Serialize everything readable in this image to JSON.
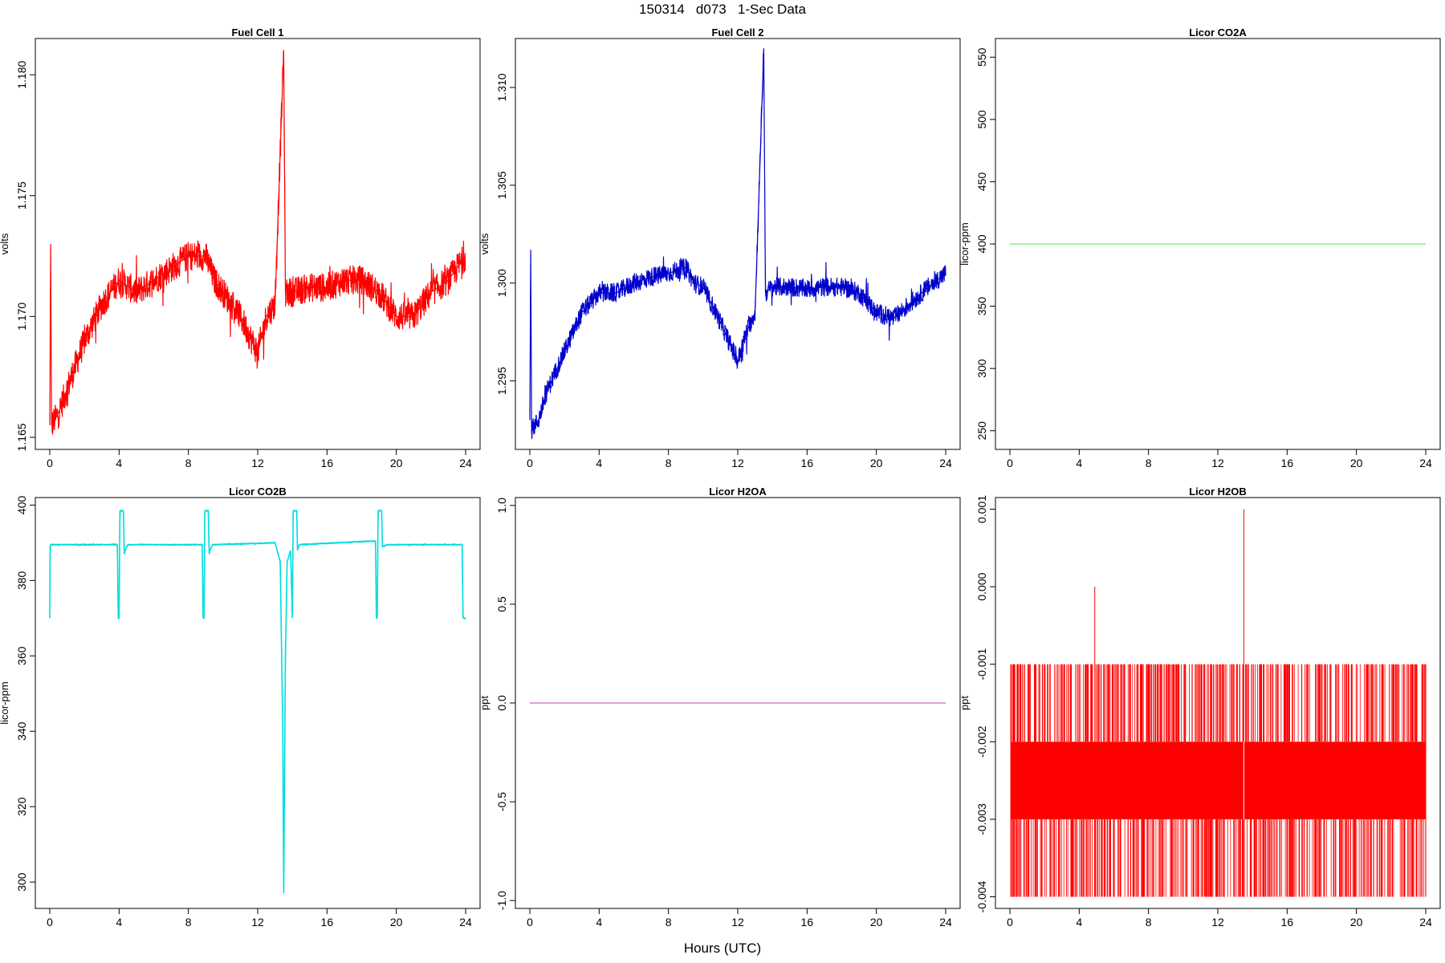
{
  "figure": {
    "title": "150314   d073   1-Sec Data",
    "xlabel": "Hours (UTC)"
  },
  "chart_data": [
    {
      "type": "line",
      "title": "Fuel Cell 1",
      "ylabel": "volts",
      "color": "#ff0000",
      "xlim": [
        0,
        24
      ],
      "ylim": [
        1.1645,
        1.1815
      ],
      "x_ticks": [
        0,
        4,
        8,
        12,
        16,
        20,
        24
      ],
      "y_ticks": [
        "1.165",
        "1.170",
        "1.175",
        "1.180"
      ],
      "y_tick_values": [
        1.165,
        1.17,
        1.175,
        1.18
      ],
      "noise": 0.001,
      "series": [
        {
          "x": [
            0,
            0.05,
            0.1,
            0.5,
            1,
            2,
            3,
            4,
            5,
            6,
            7,
            8,
            9,
            9.5,
            10,
            11,
            12,
            12.5,
            13,
            13.5,
            13.6,
            14,
            15,
            16,
            17,
            18,
            19,
            20,
            21,
            22,
            23,
            24
          ],
          "y": [
            1.1655,
            1.173,
            1.1655,
            1.166,
            1.167,
            1.169,
            1.1705,
            1.1715,
            1.171,
            1.1715,
            1.172,
            1.1725,
            1.1725,
            1.1715,
            1.171,
            1.17,
            1.1685,
            1.17,
            1.1705,
            1.181,
            1.171,
            1.171,
            1.1712,
            1.1712,
            1.1715,
            1.1715,
            1.171,
            1.17,
            1.17,
            1.171,
            1.1715,
            1.1725
          ]
        }
      ]
    },
    {
      "type": "line",
      "title": "Fuel Cell 2",
      "ylabel": "volts",
      "color": "#0000cc",
      "xlim": [
        0,
        24
      ],
      "ylim": [
        1.2915,
        1.3125
      ],
      "x_ticks": [
        0,
        4,
        8,
        12,
        16,
        20,
        24
      ],
      "y_ticks": [
        "1.295",
        "1.300",
        "1.305",
        "1.310"
      ],
      "y_tick_values": [
        1.295,
        1.3,
        1.305,
        1.31
      ],
      "noise": 0.0008,
      "series": [
        {
          "x": [
            0,
            0.05,
            0.1,
            0.5,
            1,
            2,
            3,
            4,
            5,
            6,
            7,
            8,
            9,
            9.5,
            10,
            11,
            12,
            12.5,
            13,
            13.5,
            13.6,
            14,
            15,
            16,
            17,
            18,
            19,
            20,
            21,
            22,
            23,
            24
          ],
          "y": [
            1.293,
            1.3017,
            1.2925,
            1.293,
            1.2945,
            1.2965,
            1.2985,
            1.2995,
            1.2995,
            1.3,
            1.3003,
            1.3005,
            1.3008,
            1.3,
            1.2998,
            1.298,
            1.296,
            1.2975,
            1.2985,
            1.312,
            1.2995,
            1.2998,
            1.2998,
            1.2997,
            1.2998,
            1.2998,
            1.2995,
            1.2985,
            1.2982,
            1.299,
            1.2998,
            1.3005
          ]
        }
      ]
    },
    {
      "type": "line",
      "title": "Licor CO2A",
      "ylabel": "licor-ppm",
      "color": "#66ee66",
      "xlim": [
        0,
        24
      ],
      "ylim": [
        235,
        565
      ],
      "x_ticks": [
        0,
        4,
        8,
        12,
        16,
        20,
        24
      ],
      "y_ticks": [
        "250",
        "300",
        "350",
        "400",
        "450",
        "500",
        "550"
      ],
      "y_tick_values": [
        250,
        300,
        350,
        400,
        450,
        500,
        550
      ],
      "noise": 0,
      "series": [
        {
          "x": [
            0,
            24
          ],
          "y": [
            400,
            400
          ]
        }
      ]
    },
    {
      "type": "line",
      "title": "Licor CO2B",
      "ylabel": "licor-ppm",
      "color": "#00dddd",
      "xlim": [
        0,
        24
      ],
      "ylim": [
        293,
        402
      ],
      "x_ticks": [
        0,
        4,
        8,
        12,
        16,
        20,
        24
      ],
      "y_ticks": [
        "300",
        "320",
        "340",
        "360",
        "380",
        "400"
      ],
      "y_tick_values": [
        300,
        320,
        340,
        360,
        380,
        400
      ],
      "noise": 0.2,
      "series": [
        {
          "x": [
            0,
            0.02,
            0.05,
            0.3,
            3.9,
            3.95,
            4.0,
            4.05,
            4.25,
            4.3,
            4.35,
            4.5,
            8.8,
            8.85,
            8.9,
            8.95,
            9.15,
            9.2,
            9.25,
            9.4,
            13.0,
            13.3,
            13.45,
            13.5,
            13.6,
            13.7,
            13.9,
            14.0,
            14.05,
            14.25,
            14.3,
            14.4,
            18.8,
            18.85,
            18.9,
            18.95,
            19.15,
            19.2,
            19.5,
            23.8,
            23.85,
            24
          ],
          "y": [
            370,
            389,
            389.5,
            389.5,
            389.5,
            370,
            370,
            398.5,
            398.5,
            387,
            388,
            389.5,
            389.5,
            370,
            370,
            398.5,
            398.5,
            387,
            388,
            389.5,
            390,
            385,
            340,
            297,
            360,
            385,
            388,
            370,
            398.5,
            398.5,
            388,
            389.5,
            390.5,
            370,
            370,
            398.5,
            398.5,
            389,
            389.5,
            389.5,
            370,
            370
          ]
        }
      ]
    },
    {
      "type": "line",
      "title": "Licor H2OA",
      "ylabel": "ppt",
      "color": "#cc66cc",
      "xlim": [
        0,
        24
      ],
      "ylim": [
        -1.04,
        1.04
      ],
      "x_ticks": [
        0,
        4,
        8,
        12,
        16,
        20,
        24
      ],
      "y_ticks": [
        "-1.0",
        "-0.5",
        "0.0",
        "0.5",
        "1.0"
      ],
      "y_tick_values": [
        -1.0,
        -0.5,
        0.0,
        0.5,
        1.0
      ],
      "noise": 0,
      "series": [
        {
          "x": [
            0,
            24
          ],
          "y": [
            0,
            0
          ]
        }
      ]
    },
    {
      "type": "line",
      "title": "Licor H2OB",
      "ylabel": "ppt",
      "color": "#ff0000",
      "xlim": [
        0,
        24
      ],
      "ylim": [
        -0.00415,
        0.00115
      ],
      "x_ticks": [
        0,
        4,
        8,
        12,
        16,
        20,
        24
      ],
      "y_ticks": [
        "-0.004",
        "-0.003",
        "-0.002",
        "-0.001",
        "0.000",
        "0.001"
      ],
      "y_tick_values": [
        -0.004,
        -0.003,
        -0.002,
        -0.001,
        0.0,
        0.001
      ],
      "levels": [
        -0.004,
        -0.003,
        -0.002,
        -0.001
      ],
      "dense_band": [
        -0.003,
        -0.002
      ],
      "spikes": [
        {
          "x": 4.9,
          "y": 0.0
        },
        {
          "x": 13.5,
          "y": 0.001
        }
      ],
      "series": [
        {
          "x": [
            0,
            24
          ],
          "y": [
            -0.0025,
            -0.0025
          ]
        }
      ]
    }
  ]
}
